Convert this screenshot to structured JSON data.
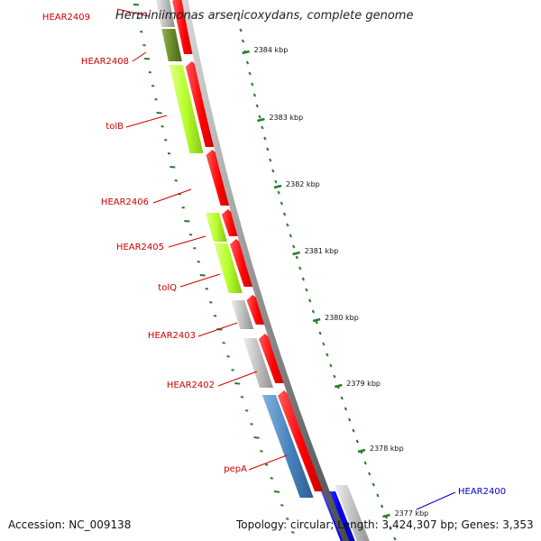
{
  "title": "Herminiimonas arsenicoxydans, complete genome",
  "footer": {
    "accession": "Accession: NC_009138",
    "topology": "Topology: circular; Length: 3,424,307 bp; Genes: 3,353"
  },
  "label_color": "#cc0000",
  "highlight_color": "#0000cc",
  "gene_labels": [
    {
      "name": "HEAR2409",
      "highlight": false
    },
    {
      "name": "HEAR2408",
      "highlight": false
    },
    {
      "name": "tolB",
      "highlight": false
    },
    {
      "name": "HEAR2406",
      "highlight": false
    },
    {
      "name": "HEAR2405",
      "highlight": false
    },
    {
      "name": "tolQ",
      "highlight": false
    },
    {
      "name": "HEAR2403",
      "highlight": false
    },
    {
      "name": "HEAR2402",
      "highlight": false
    },
    {
      "name": "pepA",
      "highlight": false
    },
    {
      "name": "HEAR2400",
      "highlight": true
    }
  ],
  "scale_ticks": [
    "2384 kbp",
    "2383 kbp",
    "2382 kbp",
    "2381 kbp",
    "2380 kbp",
    "2379 kbp",
    "2378 kbp",
    "2377 kbp"
  ],
  "feature_colors": {
    "forward_cds": "#ff0000",
    "reverse_cds_light_green": "#b5ff2a",
    "reverse_cds_olive": "#6b8a2a",
    "reverse_cds_gray": "#c0c0c0",
    "reverse_cds_steelblue": "#4a86c0",
    "reverse_cds_blue": "#0000ff",
    "backbone": "#888888",
    "tick_green": "#2a7a2a"
  }
}
